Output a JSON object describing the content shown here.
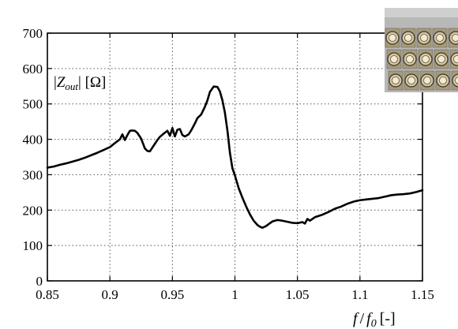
{
  "chart_data": {
    "type": "line",
    "title": "",
    "xlabel": {
      "var": "f",
      "slash": "/",
      "base": "f",
      "sub": "0",
      "unit": "[-]"
    },
    "ylabel": "",
    "annotation": {
      "prefix": "|",
      "var": "Z",
      "sub": "out",
      "suffix": "| [Ω]"
    },
    "xlim": [
      0.85,
      1.15
    ],
    "ylim": [
      0,
      700
    ],
    "xticks": [
      0.85,
      0.9,
      0.95,
      1.0,
      1.05,
      1.1,
      1.15
    ],
    "xtick_labels": [
      "0.85",
      "0.9",
      "0.95",
      "1",
      "1.05",
      "1.1",
      "1.15"
    ],
    "yticks": [
      0,
      100,
      200,
      300,
      400,
      500,
      600,
      700
    ],
    "ytick_labels": [
      "0",
      "100",
      "200",
      "300",
      "400",
      "500",
      "600",
      "700"
    ],
    "grid": true,
    "legend": "none",
    "inset_image": {
      "description_icon": "coaxial-array-inset",
      "position": "top-right"
    },
    "series": [
      {
        "color": "#000000",
        "x": [
          0.85,
          0.855,
          0.86,
          0.865,
          0.87,
          0.875,
          0.88,
          0.885,
          0.89,
          0.895,
          0.9,
          0.905,
          0.908,
          0.91,
          0.912,
          0.914,
          0.916,
          0.918,
          0.92,
          0.922,
          0.925,
          0.928,
          0.93,
          0.932,
          0.935,
          0.938,
          0.94,
          0.943,
          0.946,
          0.948,
          0.95,
          0.952,
          0.954,
          0.956,
          0.958,
          0.96,
          0.963,
          0.965,
          0.968,
          0.97,
          0.973,
          0.976,
          0.978,
          0.98,
          0.983,
          0.986,
          0.988,
          0.99,
          0.992,
          0.994,
          0.996,
          0.998,
          1.0,
          1.003,
          1.006,
          1.009,
          1.012,
          1.015,
          1.018,
          1.02,
          1.022,
          1.025,
          1.028,
          1.03,
          1.034,
          1.038,
          1.042,
          1.046,
          1.05,
          1.054,
          1.056,
          1.058,
          1.06,
          1.064,
          1.07,
          1.075,
          1.08,
          1.085,
          1.09,
          1.095,
          1.1,
          1.105,
          1.11,
          1.115,
          1.12,
          1.125,
          1.13,
          1.135,
          1.14,
          1.145,
          1.15
        ],
        "y": [
          320,
          323,
          328,
          332,
          337,
          342,
          348,
          355,
          362,
          370,
          378,
          392,
          400,
          414,
          398,
          412,
          424,
          425,
          424,
          418,
          402,
          374,
          367,
          366,
          382,
          398,
          407,
          416,
          424,
          410,
          432,
          408,
          427,
          429,
          412,
          408,
          414,
          425,
          445,
          460,
          470,
          492,
          510,
          534,
          549,
          548,
          535,
          510,
          475,
          425,
          362,
          318,
          298,
          262,
          235,
          210,
          188,
          170,
          158,
          153,
          150,
          155,
          163,
          168,
          172,
          170,
          167,
          164,
          163,
          166,
          162,
          175,
          170,
          180,
          187,
          195,
          204,
          210,
          218,
          224,
          228,
          230,
          232,
          234,
          238,
          242,
          244,
          245,
          247,
          251,
          256
        ]
      }
    ]
  }
}
